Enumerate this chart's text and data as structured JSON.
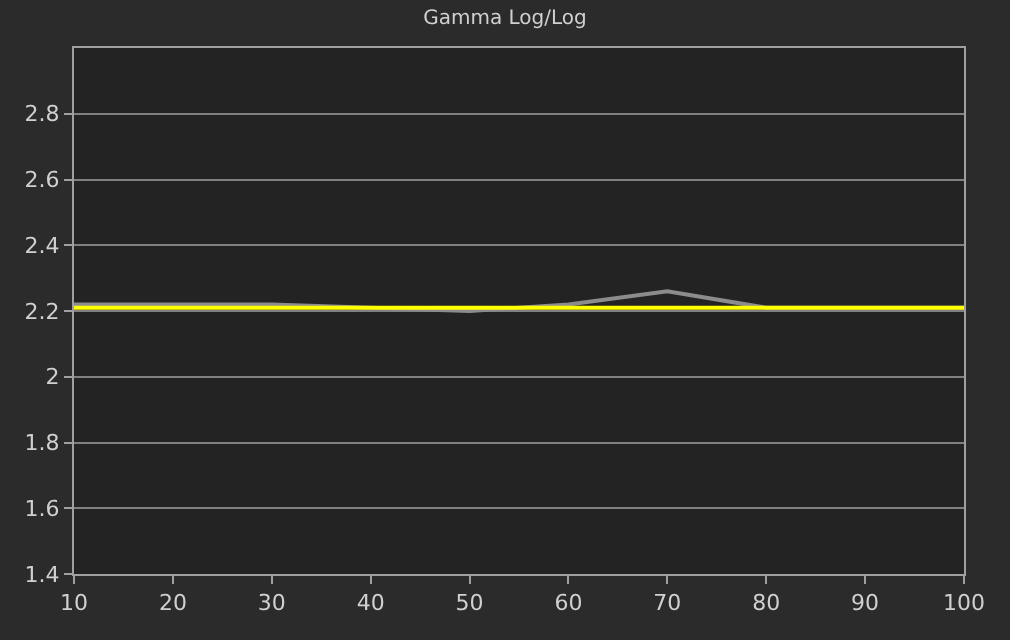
{
  "chart_data": {
    "type": "line",
    "title": "Gamma Log/Log",
    "x": [
      10,
      20,
      30,
      40,
      50,
      60,
      70,
      80,
      90,
      100
    ],
    "series": [
      {
        "color": "#8c8c8c",
        "values": [
          2.22,
          2.22,
          2.22,
          2.21,
          2.2,
          2.22,
          2.26,
          2.21,
          2.21,
          2.21
        ]
      },
      {
        "color": "#ffff00",
        "values": [
          2.21,
          2.21,
          2.21,
          2.21,
          2.21,
          2.21,
          2.21,
          2.21,
          2.21,
          2.21
        ]
      }
    ],
    "xlim": [
      10,
      100
    ],
    "xticks": [
      10,
      20,
      30,
      40,
      50,
      60,
      70,
      80,
      90,
      100
    ],
    "ylim": [
      1.4,
      3.0
    ],
    "yticks": [
      1.4,
      1.6,
      1.8,
      2,
      2.2,
      2.4,
      2.6,
      2.8
    ],
    "grid": "y",
    "marker": "none",
    "line_style": "solid"
  }
}
